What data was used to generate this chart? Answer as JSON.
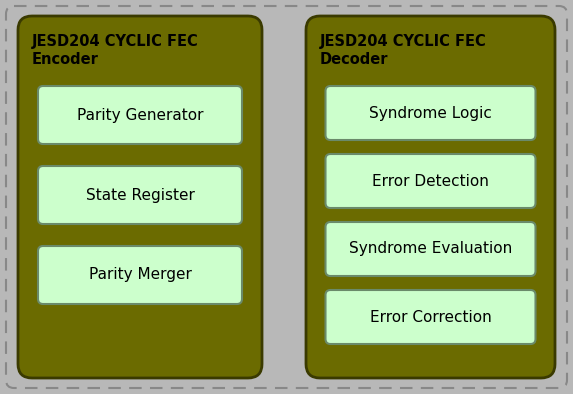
{
  "background_color": "#b8b8b8",
  "panel_fill_color": "#6b6b00",
  "panel_border_color": "#3a3a00",
  "box_fill_color": "#ccffcc",
  "box_border_color": "#6a8a6a",
  "title_color": "#000000",
  "box_text_color": "#000000",
  "encoder_title_line1": "JESD204 CYCLIC FEC",
  "encoder_title_line2": "Encoder",
  "decoder_title_line1": "JESD204 CYCLIC FEC",
  "decoder_title_line2": "Decoder",
  "encoder_boxes": [
    "Parity Generator",
    "State Register",
    "Parity Merger"
  ],
  "decoder_boxes": [
    "Syndrome Logic",
    "Error Detection",
    "Syndrome Evaluation",
    "Error Correction"
  ],
  "figsize": [
    5.73,
    3.94
  ],
  "dpi": 100
}
